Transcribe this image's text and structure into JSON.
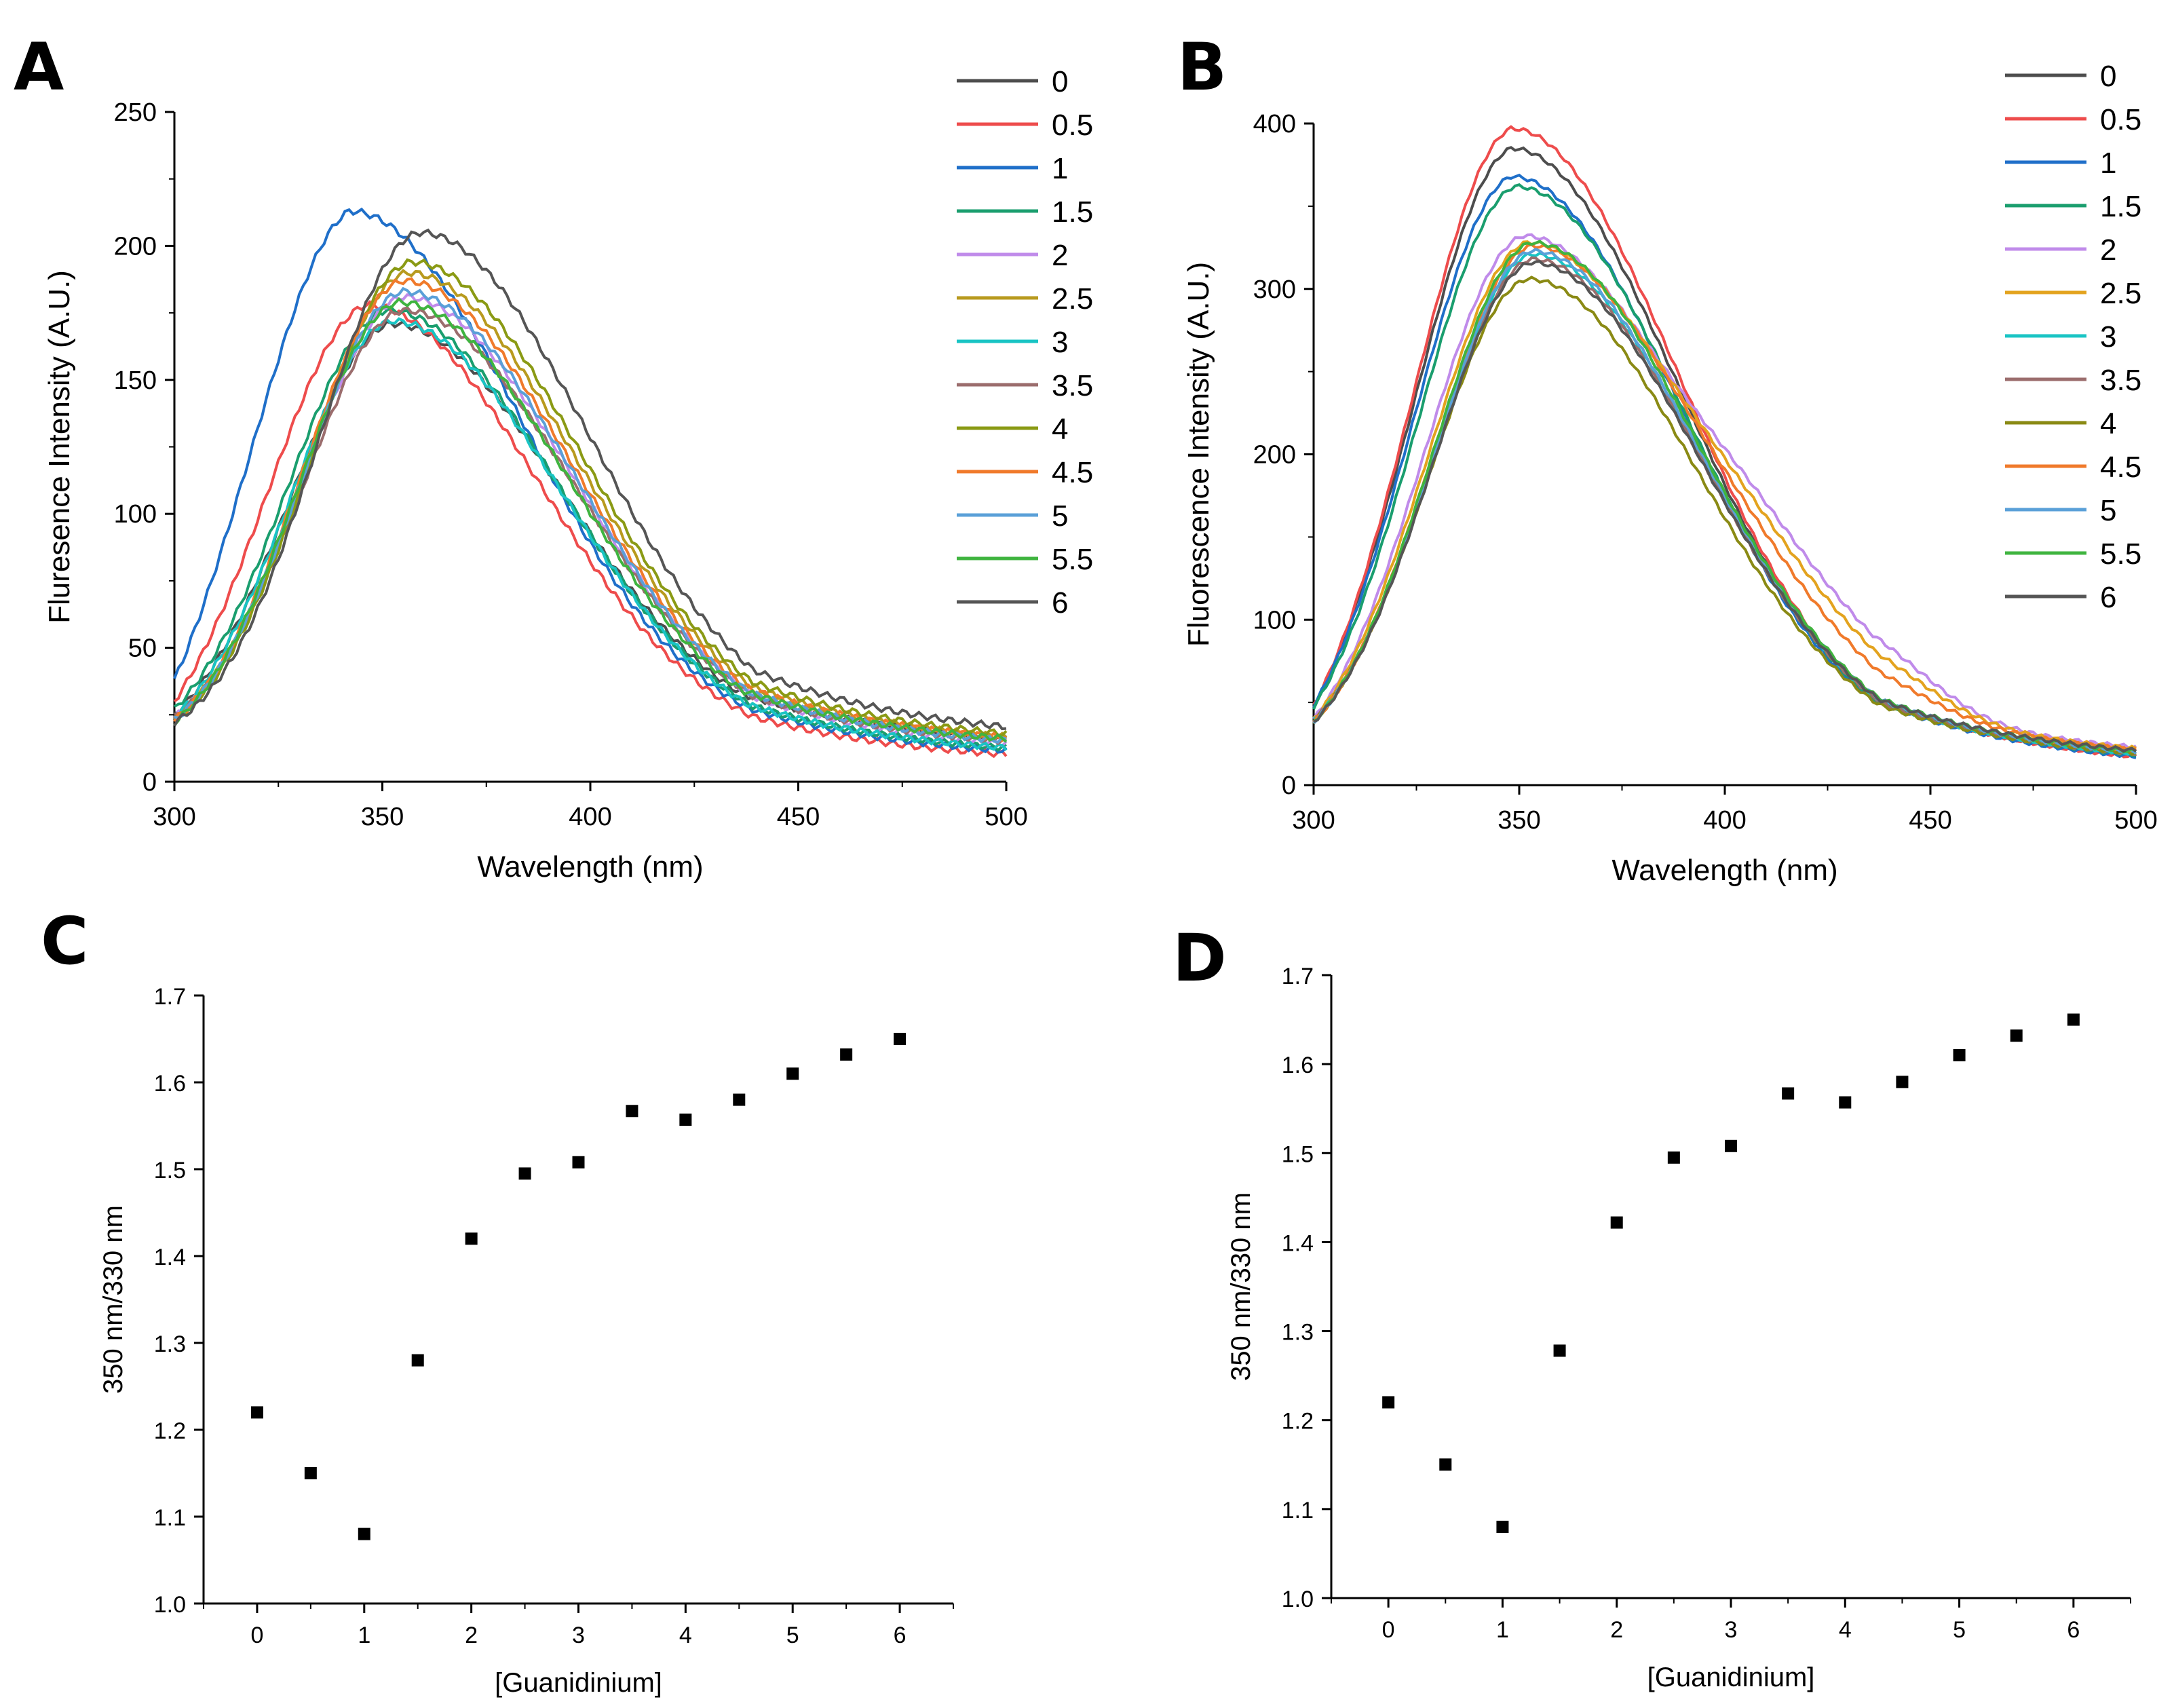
{
  "chart_data": [
    {
      "panel": "A",
      "type": "line",
      "title": "",
      "xlabel": "Wavelength (nm)",
      "ylabel": "Fluresence Intensity (A.U.)",
      "xlim": [
        300,
        500
      ],
      "ylim": [
        0,
        250
      ],
      "xticks": [
        300,
        350,
        400,
        450,
        500
      ],
      "yticks": [
        0,
        50,
        100,
        150,
        200,
        250
      ],
      "legend_position": "right",
      "series": [
        {
          "name": "0",
          "color": "#4d4d4d",
          "peak_x": 352,
          "peak_y": 171,
          "start_y": 25,
          "end_y": 12
        },
        {
          "name": "0.5",
          "color": "#ee4c4c",
          "peak_x": 346,
          "peak_y": 178,
          "start_y": 30,
          "end_y": 6
        },
        {
          "name": "1",
          "color": "#1f6fc9",
          "peak_x": 342,
          "peak_y": 213,
          "start_y": 38,
          "end_y": 7
        },
        {
          "name": "1.5",
          "color": "#1a9e6e",
          "peak_x": 351,
          "peak_y": 176,
          "start_y": 27,
          "end_y": 8
        },
        {
          "name": "2",
          "color": "#c08bea",
          "peak_x": 355,
          "peak_y": 181,
          "start_y": 24,
          "end_y": 9
        },
        {
          "name": "2.5",
          "color": "#b89a1e",
          "peak_x": 356,
          "peak_y": 190,
          "start_y": 24,
          "end_y": 11
        },
        {
          "name": "3",
          "color": "#19c4c4",
          "peak_x": 352,
          "peak_y": 172,
          "start_y": 24,
          "end_y": 8
        },
        {
          "name": "3.5",
          "color": "#9b6d6d",
          "peak_x": 355,
          "peak_y": 176,
          "start_y": 24,
          "end_y": 10
        },
        {
          "name": "4",
          "color": "#8a9a14",
          "peak_x": 357,
          "peak_y": 194,
          "start_y": 23,
          "end_y": 12
        },
        {
          "name": "4.5",
          "color": "#f07a2b",
          "peak_x": 355,
          "peak_y": 187,
          "start_y": 23,
          "end_y": 11
        },
        {
          "name": "5",
          "color": "#5aa0d8",
          "peak_x": 355,
          "peak_y": 183,
          "start_y": 23,
          "end_y": 10
        },
        {
          "name": "5.5",
          "color": "#3fb43f",
          "peak_x": 354,
          "peak_y": 179,
          "start_y": 22,
          "end_y": 11
        },
        {
          "name": "6",
          "color": "#555555",
          "peak_x": 359,
          "peak_y": 205,
          "start_y": 22,
          "end_y": 14
        }
      ]
    },
    {
      "panel": "B",
      "type": "line",
      "title": "",
      "xlabel": "Wavelength (nm)",
      "ylabel": "Fluorescence Intensity (A.U.)",
      "xlim": [
        300,
        500
      ],
      "ylim": [
        0,
        400
      ],
      "xticks": [
        300,
        350,
        400,
        450,
        500
      ],
      "yticks": [
        0,
        100,
        200,
        300,
        400
      ],
      "legend_position": "right",
      "series": [
        {
          "name": "0",
          "color": "#4d4d4d",
          "peak_x": 348,
          "peak_y": 385,
          "start_y": 48,
          "end_y": 8
        },
        {
          "name": "0.5",
          "color": "#ee4c4c",
          "peak_x": 348,
          "peak_y": 397,
          "start_y": 48,
          "end_y": 7
        },
        {
          "name": "1",
          "color": "#1f6fc9",
          "peak_x": 348,
          "peak_y": 368,
          "start_y": 48,
          "end_y": 8
        },
        {
          "name": "1.5",
          "color": "#1a9e6e",
          "peak_x": 349,
          "peak_y": 362,
          "start_y": 47,
          "end_y": 9
        },
        {
          "name": "2",
          "color": "#c08bea",
          "peak_x": 351,
          "peak_y": 332,
          "start_y": 40,
          "end_y": 14,
          "shoulder": 40
        },
        {
          "name": "2.5",
          "color": "#e3a31e",
          "peak_x": 352,
          "peak_y": 328,
          "start_y": 40,
          "end_y": 13,
          "shoulder": 30
        },
        {
          "name": "3",
          "color": "#19c4c4",
          "peak_x": 353,
          "peak_y": 321,
          "start_y": 39,
          "end_y": 10
        },
        {
          "name": "3.5",
          "color": "#9b6d6d",
          "peak_x": 353,
          "peak_y": 318,
          "start_y": 39,
          "end_y": 10
        },
        {
          "name": "4",
          "color": "#8a8a14",
          "peak_x": 352,
          "peak_y": 306,
          "start_y": 38,
          "end_y": 11
        },
        {
          "name": "4.5",
          "color": "#f07a2b",
          "peak_x": 353,
          "peak_y": 326,
          "start_y": 38,
          "end_y": 12,
          "shoulder": 18
        },
        {
          "name": "5",
          "color": "#5aa0d8",
          "peak_x": 353,
          "peak_y": 323,
          "start_y": 38,
          "end_y": 11
        },
        {
          "name": "5.5",
          "color": "#3fb43f",
          "peak_x": 353,
          "peak_y": 328,
          "start_y": 38,
          "end_y": 11
        },
        {
          "name": "6",
          "color": "#555555",
          "peak_x": 353,
          "peak_y": 316,
          "start_y": 38,
          "end_y": 12
        }
      ]
    },
    {
      "panel": "C",
      "type": "scatter",
      "title": "",
      "xlabel": "[Guanidinium]",
      "ylabel": "350 nm/330 nm",
      "xlim": [
        -0.5,
        6.5
      ],
      "ylim": [
        1.0,
        1.7
      ],
      "xticks": [
        0,
        1,
        2,
        3,
        4,
        5,
        6
      ],
      "yticks": [
        1.0,
        1.1,
        1.2,
        1.3,
        1.4,
        1.5,
        1.6,
        1.7
      ],
      "x": [
        0,
        0.5,
        1,
        1.5,
        2,
        2.5,
        3,
        3.5,
        4,
        4.5,
        5,
        5.5,
        6
      ],
      "y": [
        1.22,
        1.15,
        1.08,
        1.28,
        1.42,
        1.495,
        1.508,
        1.567,
        1.557,
        1.58,
        1.61,
        1.632,
        1.65
      ]
    },
    {
      "panel": "D",
      "type": "scatter",
      "title": "",
      "xlabel": "[Guanidinium]",
      "ylabel": "350 nm/330 nm",
      "xlim": [
        -0.5,
        6.5
      ],
      "ylim": [
        1.0,
        1.7
      ],
      "xticks": [
        0,
        1,
        2,
        3,
        4,
        5,
        6
      ],
      "yticks": [
        1.0,
        1.1,
        1.2,
        1.3,
        1.4,
        1.5,
        1.6,
        1.7
      ],
      "x": [
        0,
        0.5,
        1,
        1.5,
        2,
        2.5,
        3,
        3.5,
        4,
        4.5,
        5,
        5.5,
        6
      ],
      "y": [
        1.22,
        1.15,
        1.08,
        1.278,
        1.422,
        1.495,
        1.508,
        1.567,
        1.557,
        1.58,
        1.61,
        1.632,
        1.65
      ]
    }
  ]
}
